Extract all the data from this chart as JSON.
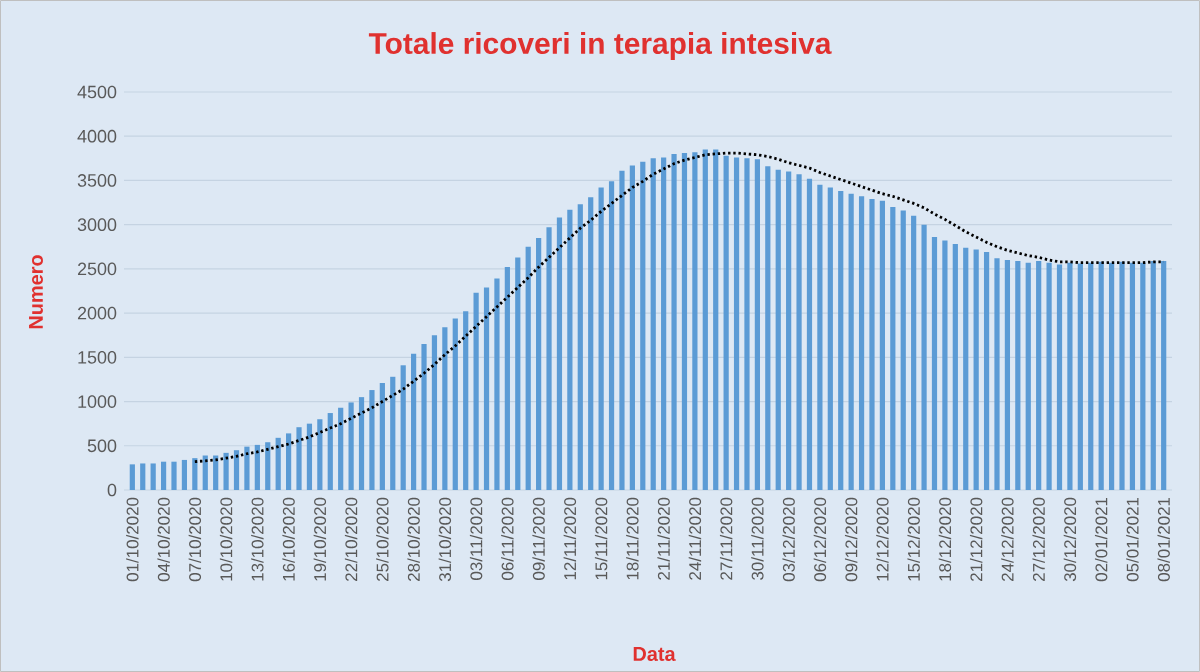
{
  "chart_data": {
    "type": "bar",
    "title": "Totale ricoveri in terapia intesiva",
    "xlabel": "Data",
    "ylabel": "Numero",
    "categories": [
      "01/10/2020",
      null,
      null,
      "04/10/2020",
      null,
      null,
      "07/10/2020",
      null,
      null,
      "10/10/2020",
      null,
      null,
      "13/10/2020",
      null,
      null,
      "16/10/2020",
      null,
      null,
      "19/10/2020",
      null,
      null,
      "22/10/2020",
      null,
      null,
      "25/10/2020",
      null,
      null,
      "28/10/2020",
      null,
      null,
      "31/10/2020",
      null,
      null,
      "03/11/2020",
      null,
      null,
      "06/11/2020",
      null,
      null,
      "09/11/2020",
      null,
      null,
      "12/11/2020",
      null,
      null,
      "15/11/2020",
      null,
      null,
      "18/11/2020",
      null,
      null,
      "21/11/2020",
      null,
      null,
      "24/11/2020",
      null,
      null,
      "27/11/2020",
      null,
      null,
      "30/11/2020",
      null,
      null,
      "03/12/2020",
      null,
      null,
      "06/12/2020",
      null,
      null,
      "09/12/2020",
      null,
      null,
      "12/12/2020",
      null,
      null,
      "15/12/2020",
      null,
      null,
      "18/12/2020",
      null,
      null,
      "21/12/2020",
      null,
      null,
      "24/12/2020",
      null,
      null,
      "27/12/2020",
      null,
      null,
      "30/12/2020",
      null,
      null,
      "02/01/2021",
      null,
      null,
      "05/01/2021",
      null,
      null,
      "08/01/2021"
    ],
    "series": [
      {
        "color": "#5b9bd5",
        "values": [
          290,
          300,
          300,
          320,
          320,
          340,
          360,
          390,
          390,
          420,
          450,
          490,
          510,
          540,
          590,
          640,
          710,
          750,
          800,
          870,
          930,
          990,
          1050,
          1130,
          1210,
          1280,
          1410,
          1540,
          1650,
          1750,
          1840,
          1940,
          2020,
          2230,
          2290,
          2390,
          2520,
          2630,
          2750,
          2850,
          2970,
          3080,
          3170,
          3230,
          3310,
          3420,
          3490,
          3610,
          3670,
          3710,
          3750,
          3760,
          3800,
          3810,
          3820,
          3850,
          3850,
          3780,
          3760,
          3750,
          3740,
          3660,
          3620,
          3600,
          3570,
          3520,
          3450,
          3420,
          3380,
          3350,
          3320,
          3290,
          3270,
          3200,
          3160,
          3100,
          3000,
          2860,
          2820,
          2780,
          2740,
          2720,
          2690,
          2620,
          2600,
          2590,
          2570,
          2590,
          2570,
          2550,
          2570,
          2560,
          2570,
          2580,
          2570,
          2580,
          2570,
          2570,
          2590,
          2590
        ]
      },
      {
        "type": "line",
        "color": "#000000",
        "line_style": "dotted",
        "marker": "none",
        "values": [
          null,
          null,
          null,
          null,
          null,
          null,
          320,
          330,
          340,
          360,
          380,
          410,
          430,
          460,
          490,
          520,
          560,
          600,
          650,
          700,
          750,
          810,
          870,
          930,
          1000,
          1070,
          1140,
          1230,
          1320,
          1420,
          1530,
          1630,
          1740,
          1850,
          1960,
          2070,
          2180,
          2290,
          2400,
          2520,
          2630,
          2740,
          2850,
          2960,
          3050,
          3150,
          3240,
          3330,
          3420,
          3490,
          3570,
          3630,
          3690,
          3730,
          3760,
          3790,
          3800,
          3810,
          3810,
          3800,
          3790,
          3770,
          3740,
          3700,
          3670,
          3640,
          3590,
          3550,
          3510,
          3470,
          3430,
          3390,
          3350,
          3320,
          3280,
          3240,
          3190,
          3120,
          3060,
          2990,
          2920,
          2860,
          2800,
          2750,
          2710,
          2680,
          2650,
          2630,
          2600,
          2580,
          2580,
          2570,
          2570,
          2570,
          2570,
          2570,
          2570,
          2570,
          2580,
          2580
        ]
      }
    ],
    "ylim": [
      0,
      4500
    ],
    "yticks": [
      0,
      500,
      1000,
      1500,
      2000,
      2500,
      3000,
      3500,
      4000,
      4500
    ],
    "grid": "y"
  }
}
